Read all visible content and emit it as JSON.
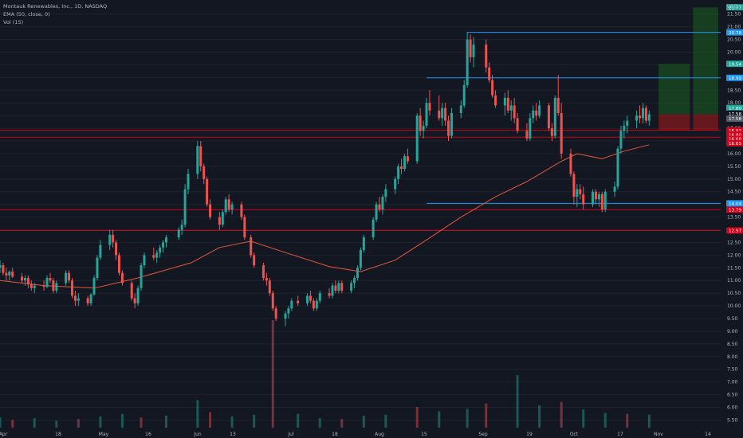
{
  "legend": {
    "symbol_line": "Montauk Renewables, Inc., 1D, NASDAQ",
    "ema_line": "EMA (50, close, 0)",
    "vol_line": "Vol (15)"
  },
  "colors": {
    "background": "#131722",
    "up": "#26a69a",
    "down": "#ef5350",
    "ema": "#e0583e",
    "grid": "#1e222d",
    "axis_text": "#b2b5be",
    "resistance_red": "#d0021b",
    "blue_line": "#2196f3",
    "green_zone": "#1b5e20",
    "red_zone": "#b71c1c"
  },
  "chart_data": {
    "type": "candlestick",
    "y_unit": "USD",
    "y_range": [
      5.2,
      21.9
    ],
    "y_ticks": [
      "21.50",
      "21.00",
      "20.50",
      "20.00",
      "19.50",
      "19.00",
      "18.50",
      "18.00",
      "17.50",
      "17.00",
      "16.50",
      "16.00",
      "15.50",
      "15.00",
      "14.50",
      "14.00",
      "13.50",
      "13.00",
      "12.50",
      "12.00",
      "11.50",
      "11.00",
      "10.50",
      "10.00",
      "9.50",
      "9.00",
      "8.50",
      "8.00",
      "7.50",
      "7.00",
      "6.50",
      "6.00",
      "5.50"
    ],
    "x_tick_labels": [
      "Apr",
      "18",
      "May",
      "16",
      "Jun",
      "13",
      "Jul",
      "18",
      "Aug",
      "15",
      "Sep",
      "19",
      "Oct",
      "17",
      "Nov",
      "14"
    ],
    "date_range": [
      "2024-04-01",
      "2024-11-14"
    ],
    "candles": [
      [
        "2024-04-01",
        11.5,
        11.8,
        11.3,
        11.6
      ],
      [
        "2024-04-02",
        11.6,
        11.7,
        11.2,
        11.3
      ],
      [
        "2024-04-03",
        11.3,
        11.5,
        11.0,
        11.2
      ],
      [
        "2024-04-04",
        11.2,
        11.4,
        11.0,
        11.35
      ],
      [
        "2024-04-05",
        11.35,
        11.5,
        11.1,
        11.15
      ],
      [
        "2024-04-08",
        11.15,
        11.3,
        10.9,
        11.0
      ],
      [
        "2024-04-09",
        11.0,
        11.2,
        10.8,
        11.1
      ],
      [
        "2024-04-10",
        11.1,
        11.2,
        10.7,
        10.85
      ],
      [
        "2024-04-11",
        10.85,
        11.0,
        10.6,
        10.7
      ],
      [
        "2024-04-12",
        10.7,
        10.9,
        10.5,
        10.8
      ],
      [
        "2024-04-15",
        10.8,
        11.0,
        10.6,
        10.75
      ],
      [
        "2024-04-16",
        10.75,
        11.2,
        10.7,
        11.1
      ],
      [
        "2024-04-17",
        11.1,
        11.3,
        10.9,
        11.0
      ],
      [
        "2024-04-18",
        11.0,
        11.1,
        10.5,
        10.6
      ],
      [
        "2024-04-19",
        10.6,
        11.0,
        10.5,
        10.9
      ],
      [
        "2024-04-22",
        10.9,
        11.4,
        10.8,
        11.3
      ],
      [
        "2024-04-23",
        11.3,
        11.4,
        10.9,
        11.0
      ],
      [
        "2024-04-24",
        11.0,
        11.1,
        10.3,
        10.4
      ],
      [
        "2024-04-25",
        10.4,
        10.6,
        10.0,
        10.2
      ],
      [
        "2024-04-26",
        10.2,
        10.5,
        10.0,
        10.3
      ],
      [
        "2024-04-29",
        10.3,
        10.4,
        10.0,
        10.1
      ],
      [
        "2024-04-30",
        10.1,
        10.5,
        10.0,
        10.45
      ],
      [
        "2024-05-01",
        10.45,
        11.2,
        10.4,
        11.1
      ],
      [
        "2024-05-02",
        11.1,
        12.0,
        11.0,
        11.9
      ],
      [
        "2024-05-03",
        11.9,
        12.6,
        11.8,
        12.4
      ],
      [
        "2024-05-06",
        12.4,
        13.0,
        12.2,
        12.8
      ],
      [
        "2024-05-07",
        12.8,
        13.0,
        12.3,
        12.5
      ],
      [
        "2024-05-08",
        12.5,
        12.6,
        11.8,
        12.0
      ],
      [
        "2024-05-09",
        12.0,
        12.1,
        11.2,
        11.3
      ],
      [
        "2024-05-10",
        11.3,
        11.4,
        10.8,
        10.9
      ],
      [
        "2024-05-13",
        10.9,
        11.0,
        10.2,
        10.3
      ],
      [
        "2024-05-14",
        10.3,
        10.5,
        9.9,
        10.1
      ],
      [
        "2024-05-15",
        10.1,
        10.8,
        10.0,
        10.7
      ],
      [
        "2024-05-16",
        10.7,
        11.7,
        10.6,
        11.6
      ],
      [
        "2024-05-17",
        11.6,
        12.1,
        11.5,
        12.0
      ],
      [
        "2024-05-20",
        12.0,
        12.3,
        11.8,
        11.9
      ],
      [
        "2024-05-21",
        11.9,
        12.2,
        11.7,
        12.1
      ],
      [
        "2024-05-22",
        12.1,
        12.4,
        11.9,
        12.3
      ],
      [
        "2024-05-23",
        12.3,
        12.6,
        12.1,
        12.5
      ],
      [
        "2024-05-24",
        12.5,
        12.8,
        12.3,
        12.7
      ],
      [
        "2024-05-28",
        12.7,
        13.1,
        12.6,
        13.0
      ],
      [
        "2024-05-29",
        13.0,
        13.4,
        12.8,
        13.2
      ],
      [
        "2024-05-30",
        13.2,
        14.8,
        13.1,
        14.6
      ],
      [
        "2024-05-31",
        14.6,
        15.4,
        14.4,
        15.2
      ],
      [
        "2024-06-03",
        15.2,
        16.5,
        15.0,
        16.3
      ],
      [
        "2024-06-04",
        16.3,
        16.5,
        15.3,
        15.5
      ],
      [
        "2024-06-05",
        15.5,
        15.6,
        14.8,
        15.0
      ],
      [
        "2024-06-06",
        15.0,
        15.1,
        13.9,
        14.0
      ],
      [
        "2024-06-07",
        14.0,
        14.2,
        13.4,
        13.5
      ],
      [
        "2024-06-10",
        13.5,
        13.7,
        13.0,
        13.2
      ],
      [
        "2024-06-11",
        13.2,
        13.8,
        13.1,
        13.7
      ],
      [
        "2024-06-12",
        13.7,
        14.3,
        13.6,
        14.2
      ],
      [
        "2024-06-13",
        14.2,
        14.4,
        13.7,
        13.8
      ],
      [
        "2024-06-14",
        13.8,
        14.1,
        13.6,
        14.0
      ],
      [
        "2024-06-17",
        14.0,
        14.1,
        13.4,
        13.5
      ],
      [
        "2024-06-18",
        13.5,
        13.6,
        12.6,
        12.7
      ],
      [
        "2024-06-20",
        12.7,
        12.8,
        11.9,
        12.0
      ],
      [
        "2024-06-21",
        12.0,
        12.1,
        11.5,
        11.6
      ],
      [
        "2024-06-24",
        11.6,
        11.7,
        11.0,
        11.1
      ],
      [
        "2024-06-25",
        11.1,
        11.3,
        10.8,
        11.0
      ],
      [
        "2024-06-26",
        11.0,
        11.1,
        10.4,
        10.5
      ],
      [
        "2024-06-27",
        10.5,
        10.6,
        9.8,
        9.9
      ],
      [
        "2024-06-28",
        9.9,
        10.0,
        9.4,
        9.5
      ],
      [
        "2024-07-01",
        9.5,
        9.8,
        9.2,
        9.7
      ],
      [
        "2024-07-02",
        9.7,
        10.0,
        9.5,
        9.9
      ],
      [
        "2024-07-03",
        9.9,
        10.3,
        9.8,
        10.2
      ],
      [
        "2024-07-05",
        10.2,
        10.4,
        10.0,
        10.1
      ],
      [
        "2024-07-08",
        10.1,
        10.5,
        10.0,
        10.4
      ],
      [
        "2024-07-09",
        10.4,
        10.6,
        10.1,
        10.2
      ],
      [
        "2024-07-10",
        10.2,
        10.3,
        9.8,
        9.9
      ],
      [
        "2024-07-11",
        9.9,
        10.3,
        9.8,
        10.2
      ],
      [
        "2024-07-12",
        10.2,
        10.6,
        10.1,
        10.5
      ],
      [
        "2024-07-15",
        10.5,
        10.7,
        10.3,
        10.4
      ],
      [
        "2024-07-16",
        10.4,
        10.9,
        10.3,
        10.8
      ],
      [
        "2024-07-17",
        10.8,
        11.0,
        10.5,
        10.6
      ],
      [
        "2024-07-18",
        10.6,
        11.0,
        10.5,
        10.9
      ],
      [
        "2024-07-19",
        10.9,
        11.0,
        10.5,
        10.6
      ],
      [
        "2024-07-22",
        10.6,
        11.0,
        10.5,
        10.9
      ],
      [
        "2024-07-23",
        10.9,
        11.2,
        10.7,
        11.1
      ],
      [
        "2024-07-24",
        11.1,
        11.6,
        11.0,
        11.5
      ],
      [
        "2024-07-25",
        11.5,
        12.3,
        11.4,
        12.2
      ],
      [
        "2024-07-26",
        12.2,
        12.8,
        12.1,
        12.7
      ],
      [
        "2024-07-29",
        12.7,
        13.5,
        12.6,
        13.4
      ],
      [
        "2024-07-30",
        13.4,
        14.1,
        13.3,
        14.0
      ],
      [
        "2024-07-31",
        14.0,
        14.3,
        13.7,
        13.8
      ],
      [
        "2024-08-01",
        13.8,
        14.4,
        13.6,
        14.3
      ],
      [
        "2024-08-02",
        14.3,
        14.8,
        14.1,
        14.6
      ],
      [
        "2024-08-05",
        14.6,
        15.1,
        14.4,
        15.0
      ],
      [
        "2024-08-06",
        15.0,
        15.6,
        14.8,
        15.5
      ],
      [
        "2024-08-07",
        15.5,
        15.8,
        15.2,
        15.4
      ],
      [
        "2024-08-08",
        15.4,
        16.0,
        15.3,
        15.9
      ],
      [
        "2024-08-09",
        15.9,
        16.2,
        15.6,
        15.7
      ],
      [
        "2024-08-12",
        15.7,
        17.6,
        15.6,
        17.5
      ],
      [
        "2024-08-13",
        17.5,
        17.8,
        16.7,
        16.9
      ],
      [
        "2024-08-14",
        16.9,
        17.3,
        16.6,
        17.1
      ],
      [
        "2024-08-15",
        17.1,
        18.2,
        17.0,
        18.0
      ],
      [
        "2024-08-16",
        18.0,
        18.5,
        17.5,
        17.7
      ],
      [
        "2024-08-19",
        17.7,
        18.3,
        17.3,
        17.4
      ],
      [
        "2024-08-20",
        17.4,
        18.0,
        17.1,
        17.8
      ],
      [
        "2024-08-21",
        17.8,
        18.0,
        17.1,
        17.3
      ],
      [
        "2024-08-22",
        17.3,
        17.5,
        16.5,
        16.7
      ],
      [
        "2024-08-23",
        16.7,
        17.8,
        16.6,
        17.6
      ],
      [
        "2024-08-26",
        17.6,
        18.1,
        17.4,
        17.9
      ],
      [
        "2024-08-27",
        17.9,
        18.9,
        17.8,
        18.7
      ],
      [
        "2024-08-28",
        18.7,
        20.8,
        18.6,
        20.5
      ],
      [
        "2024-08-29",
        20.5,
        20.7,
        19.6,
        19.8
      ],
      [
        "2024-08-30",
        19.8,
        20.6,
        19.4,
        20.3
      ],
      [
        "2024-09-03",
        20.3,
        20.5,
        19.2,
        19.4
      ],
      [
        "2024-09-04",
        19.4,
        19.6,
        18.8,
        18.9
      ],
      [
        "2024-09-05",
        18.9,
        19.1,
        18.2,
        18.3
      ],
      [
        "2024-09-06",
        18.3,
        18.5,
        17.8,
        17.9
      ],
      [
        "2024-09-09",
        17.9,
        18.4,
        17.5,
        18.2
      ],
      [
        "2024-09-10",
        18.2,
        18.5,
        17.6,
        17.7
      ],
      [
        "2024-09-11",
        17.7,
        18.1,
        17.3,
        17.9
      ],
      [
        "2024-09-12",
        17.9,
        18.2,
        17.2,
        17.4
      ],
      [
        "2024-09-13",
        17.4,
        17.6,
        16.8,
        16.9
      ],
      [
        "2024-09-16",
        16.9,
        17.2,
        16.5,
        16.6
      ],
      [
        "2024-09-17",
        16.6,
        17.6,
        16.5,
        17.4
      ],
      [
        "2024-09-18",
        17.4,
        17.9,
        17.2,
        17.7
      ],
      [
        "2024-09-19",
        17.7,
        18.0,
        17.3,
        17.5
      ],
      [
        "2024-09-20",
        17.5,
        18.1,
        17.4,
        17.9
      ],
      [
        "2024-09-23",
        17.9,
        18.0,
        16.9,
        17.0
      ],
      [
        "2024-09-24",
        17.0,
        17.2,
        16.5,
        16.7
      ],
      [
        "2024-09-25",
        16.7,
        18.3,
        16.6,
        18.2
      ],
      [
        "2024-09-26",
        18.2,
        19.1,
        17.5,
        17.6
      ],
      [
        "2024-09-27",
        17.6,
        18.0,
        15.8,
        16.0
      ],
      [
        "2024-09-30",
        16.0,
        16.2,
        15.1,
        15.2
      ],
      [
        "2024-10-01",
        15.2,
        15.3,
        14.0,
        14.3
      ],
      [
        "2024-10-02",
        14.3,
        14.8,
        13.9,
        14.6
      ],
      [
        "2024-10-03",
        14.6,
        14.8,
        14.2,
        14.4
      ],
      [
        "2024-10-04",
        14.4,
        14.7,
        13.8,
        14.0
      ],
      [
        "2024-10-07",
        14.0,
        14.6,
        13.9,
        14.5
      ],
      [
        "2024-10-08",
        14.5,
        14.6,
        14.0,
        14.2
      ],
      [
        "2024-10-09",
        14.2,
        14.5,
        13.9,
        14.4
      ],
      [
        "2024-10-10",
        14.4,
        14.5,
        13.7,
        13.8
      ],
      [
        "2024-10-11",
        13.8,
        14.6,
        13.7,
        14.5
      ],
      [
        "2024-10-14",
        14.5,
        14.9,
        14.3,
        14.7
      ],
      [
        "2024-10-15",
        14.7,
        16.3,
        14.6,
        16.2
      ],
      [
        "2024-10-16",
        16.2,
        17.1,
        16.0,
        16.9
      ],
      [
        "2024-10-17",
        16.9,
        17.3,
        16.6,
        17.1
      ],
      [
        "2024-10-18",
        17.1,
        17.5,
        16.8,
        17.3
      ],
      [
        "2024-10-21",
        17.3,
        17.7,
        17.0,
        17.5
      ],
      [
        "2024-10-22",
        17.5,
        17.9,
        17.2,
        17.4
      ],
      [
        "2024-10-23",
        17.4,
        18.0,
        17.2,
        17.8
      ],
      [
        "2024-10-24",
        17.8,
        17.9,
        17.2,
        17.3
      ],
      [
        "2024-10-25",
        17.3,
        17.7,
        17.1,
        17.55
      ]
    ],
    "ema": [
      [
        "2024-04-01",
        11.0
      ],
      [
        "2024-04-15",
        10.8
      ],
      [
        "2024-05-01",
        10.7
      ],
      [
        "2024-05-15",
        11.1
      ],
      [
        "2024-06-01",
        11.7
      ],
      [
        "2024-06-10",
        12.3
      ],
      [
        "2024-06-20",
        12.55
      ],
      [
        "2024-07-01",
        12.1
      ],
      [
        "2024-07-15",
        11.55
      ],
      [
        "2024-07-25",
        11.35
      ],
      [
        "2024-08-05",
        11.8
      ],
      [
        "2024-08-15",
        12.6
      ],
      [
        "2024-08-26",
        13.5
      ],
      [
        "2024-09-06",
        14.3
      ],
      [
        "2024-09-16",
        14.9
      ],
      [
        "2024-09-27",
        15.7
      ],
      [
        "2024-10-02",
        16.0
      ],
      [
        "2024-10-10",
        15.8
      ],
      [
        "2024-10-17",
        16.1
      ],
      [
        "2024-10-25",
        16.35
      ]
    ],
    "volume": [
      [
        "2024-04-01",
        1.2
      ],
      [
        "2024-04-05",
        0.9
      ],
      [
        "2024-04-12",
        1.1
      ],
      [
        "2024-04-19",
        0.8
      ],
      [
        "2024-04-26",
        1.0
      ],
      [
        "2024-05-03",
        1.3
      ],
      [
        "2024-05-10",
        1.6
      ],
      [
        "2024-05-16",
        1.2
      ],
      [
        "2024-05-24",
        1.4
      ],
      [
        "2024-06-03",
        3.2
      ],
      [
        "2024-06-07",
        1.8
      ],
      [
        "2024-06-14",
        1.3
      ],
      [
        "2024-06-21",
        1.5
      ],
      [
        "2024-06-27",
        12.5
      ],
      [
        "2024-07-05",
        1.6
      ],
      [
        "2024-07-12",
        1.1
      ],
      [
        "2024-07-19",
        1.0
      ],
      [
        "2024-07-26",
        1.4
      ],
      [
        "2024-08-02",
        1.5
      ],
      [
        "2024-08-12",
        2.4
      ],
      [
        "2024-08-19",
        1.9
      ],
      [
        "2024-08-28",
        2.2
      ],
      [
        "2024-09-03",
        2.8
      ],
      [
        "2024-09-13",
        6.1
      ],
      [
        "2024-09-20",
        2.6
      ],
      [
        "2024-09-27",
        3.0
      ],
      [
        "2024-10-04",
        2.1
      ],
      [
        "2024-10-11",
        1.7
      ],
      [
        "2024-10-18",
        1.6
      ],
      [
        "2024-10-25",
        1.5
      ]
    ],
    "horizontal_lines": [
      {
        "price": 16.92,
        "color": "#d0021b"
      },
      {
        "price": 16.65,
        "color": "#d0021b"
      },
      {
        "price": 13.79,
        "color": "#d0021b"
      },
      {
        "price": 12.97,
        "color": "#d0021b"
      },
      {
        "price": 14.04,
        "color": "#2196f3",
        "from": "2024-08-15"
      },
      {
        "price": 18.99,
        "color": "#2196f3",
        "from": "2024-08-15"
      },
      {
        "price": 20.78,
        "color": "#2196f3",
        "from": "2024-08-28"
      }
    ],
    "position_zones": [
      {
        "from": "2024-10-28",
        "to": "2024-11-07",
        "top": 19.54,
        "mid": 17.55,
        "bottom": 16.92
      },
      {
        "from": "2024-11-08",
        "to": "2024-11-16",
        "top": 21.77,
        "mid": 17.55,
        "bottom": 16.92
      }
    ],
    "price_labels": [
      {
        "text": "21.77",
        "price": 21.77,
        "color": "#26a69a"
      },
      {
        "text": "20.78",
        "price": 20.78,
        "color": "#2196f3"
      },
      {
        "text": "19.54",
        "price": 19.54,
        "color": "#26a69a"
      },
      {
        "text": "18.99",
        "price": 18.99,
        "color": "#2196f3"
      },
      {
        "text": "17.80",
        "price": 17.8,
        "color": "#26a69a"
      },
      {
        "text": "17.58",
        "price": 17.58,
        "color": "#131722"
      },
      {
        "text": "17.58",
        "price": 17.38,
        "color": "#555a66"
      },
      {
        "text": "16.92",
        "price": 16.92,
        "color": "#d0021b"
      },
      {
        "text": "16.80",
        "price": 16.75,
        "color": "#d0021b"
      },
      {
        "text": "16.68",
        "price": 16.58,
        "color": "#d0021b"
      },
      {
        "text": "16.65",
        "price": 16.41,
        "color": "#d0021b"
      },
      {
        "text": "14.04",
        "price": 14.04,
        "color": "#2196f3"
      },
      {
        "text": "13.79",
        "price": 13.79,
        "color": "#d0021b"
      },
      {
        "text": "12.97",
        "price": 12.97,
        "color": "#d0021b"
      }
    ]
  }
}
